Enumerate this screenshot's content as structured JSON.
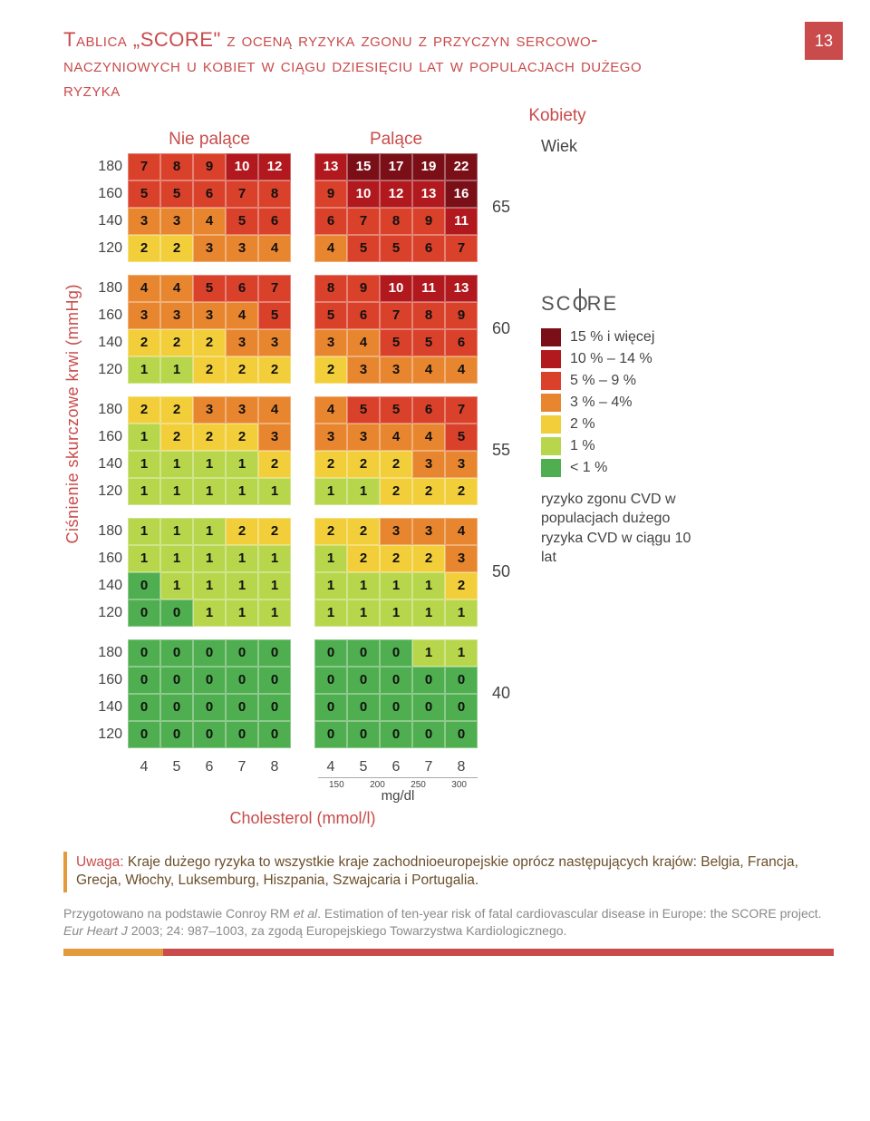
{
  "page_number": "13",
  "title": "Tablica „SCORE\" z oceną ryzyka zgonu z przyczyn sercowo-naczyniowych u kobiet w ciągu dziesięciu lat w populacjach dużego ryzyka",
  "subtitle": "Kobiety",
  "column_headers": {
    "nonsmoker": "Nie palące",
    "smoker": "Palące"
  },
  "yaxis": "Ciśnienie skurczowe krwi (mmHg)",
  "xaxis": "Cholesterol (mmol/l)",
  "wiek_label": "Wiek",
  "bp_levels": [
    "180",
    "160",
    "140",
    "120"
  ],
  "chol_levels": [
    "4",
    "5",
    "6",
    "7",
    "8"
  ],
  "mgdl_ticks": [
    "150",
    "200",
    "250",
    "300"
  ],
  "mgdl_unit": "mg/dl",
  "ages": [
    "65",
    "60",
    "55",
    "50",
    "40"
  ],
  "score_logo_left": "SC",
  "score_logo_mid": "O",
  "score_logo_right": "RE",
  "legend": [
    {
      "color": "#7a0f17",
      "label": "15 % i więcej"
    },
    {
      "color": "#b1191e",
      "label": "10 % – 14 %"
    },
    {
      "color": "#d9412a",
      "label": "5 % – 9 %"
    },
    {
      "color": "#e8862f",
      "label": "3 % – 4%"
    },
    {
      "color": "#f2cf3a",
      "label": "2 %"
    },
    {
      "color": "#b8d64c",
      "label": "1 %"
    },
    {
      "color": "#4fae4f",
      "label": "< 1 %"
    }
  ],
  "risk_desc": "ryzyko zgonu CVD w populacjach dużego ryzyka CVD w ciągu 10 lat",
  "note_prefix": "Uwaga:",
  "note_body": " Kraje dużego ryzyka to wszystkie kraje zachodnioeuropejskie oprócz następujących krajów: Belgia, Francja, Grecja, Włochy, Luksemburg, Hiszpania, Szwajcaria i Portugalia.",
  "citation_a": "Przygotowano na podstawie Conroy RM ",
  "citation_b": "et al",
  "citation_c": ". Estimation of ten-year risk of fatal cardiovascular disease in Europe: the SCORE project. ",
  "citation_d": "Eur Heart J",
  "citation_e": " 2003; 24: 987–1003, za zgodą Europejskiego Towarzystwa Kardiologicznego.",
  "color_map": {
    "0": "#4fae4f",
    "1": "#b8d64c",
    "2": "#f2cf3a",
    "3": "#e8862f",
    "4": "#e8862f",
    "5": "#d9412a",
    "6": "#d9412a",
    "7": "#d9412a",
    "8": "#d9412a",
    "9": "#d9412a",
    "10": "#b1191e",
    "11": "#b1191e",
    "12": "#b1191e",
    "13": "#b1191e",
    "14": "#b1191e",
    "15": "#7a0f17",
    "16": "#7a0f17",
    "17": "#7a0f17",
    "19": "#7a0f17",
    "22": "#7a0f17"
  },
  "blocks": {
    "65": {
      "ns": [
        [
          7,
          8,
          9,
          10,
          12
        ],
        [
          5,
          5,
          6,
          7,
          8
        ],
        [
          3,
          3,
          4,
          5,
          6
        ],
        [
          2,
          2,
          3,
          3,
          4
        ]
      ],
      "s": [
        [
          13,
          15,
          17,
          19,
          22
        ],
        [
          9,
          10,
          12,
          13,
          16
        ],
        [
          6,
          7,
          8,
          9,
          11
        ],
        [
          4,
          5,
          5,
          6,
          7
        ]
      ]
    },
    "60": {
      "ns": [
        [
          4,
          4,
          5,
          6,
          7
        ],
        [
          3,
          3,
          3,
          4,
          5
        ],
        [
          2,
          2,
          2,
          3,
          3
        ],
        [
          1,
          1,
          2,
          2,
          2
        ]
      ],
      "s": [
        [
          8,
          9,
          10,
          11,
          13
        ],
        [
          5,
          6,
          7,
          8,
          9
        ],
        [
          3,
          4,
          5,
          5,
          6
        ],
        [
          2,
          3,
          3,
          4,
          4
        ]
      ]
    },
    "55": {
      "ns": [
        [
          2,
          2,
          3,
          3,
          4
        ],
        [
          1,
          2,
          2,
          2,
          3
        ],
        [
          1,
          1,
          1,
          1,
          2
        ],
        [
          1,
          1,
          1,
          1,
          1
        ]
      ],
      "s": [
        [
          4,
          5,
          5,
          6,
          7
        ],
        [
          3,
          3,
          4,
          4,
          5
        ],
        [
          2,
          2,
          2,
          3,
          3
        ],
        [
          1,
          1,
          2,
          2,
          2
        ]
      ]
    },
    "50": {
      "ns": [
        [
          1,
          1,
          1,
          2,
          2
        ],
        [
          1,
          1,
          1,
          1,
          1
        ],
        [
          0,
          1,
          1,
          1,
          1
        ],
        [
          0,
          0,
          1,
          1,
          1
        ]
      ],
      "s": [
        [
          2,
          2,
          3,
          3,
          4
        ],
        [
          1,
          2,
          2,
          2,
          3
        ],
        [
          1,
          1,
          1,
          1,
          2
        ],
        [
          1,
          1,
          1,
          1,
          1
        ]
      ]
    },
    "40": {
      "ns": [
        [
          0,
          0,
          0,
          0,
          0
        ],
        [
          0,
          0,
          0,
          0,
          0
        ],
        [
          0,
          0,
          0,
          0,
          0
        ],
        [
          0,
          0,
          0,
          0,
          0
        ]
      ],
      "s": [
        [
          0,
          0,
          0,
          1,
          1
        ],
        [
          0,
          0,
          0,
          0,
          0
        ],
        [
          0,
          0,
          0,
          0,
          0
        ],
        [
          0,
          0,
          0,
          0,
          0
        ]
      ]
    }
  }
}
